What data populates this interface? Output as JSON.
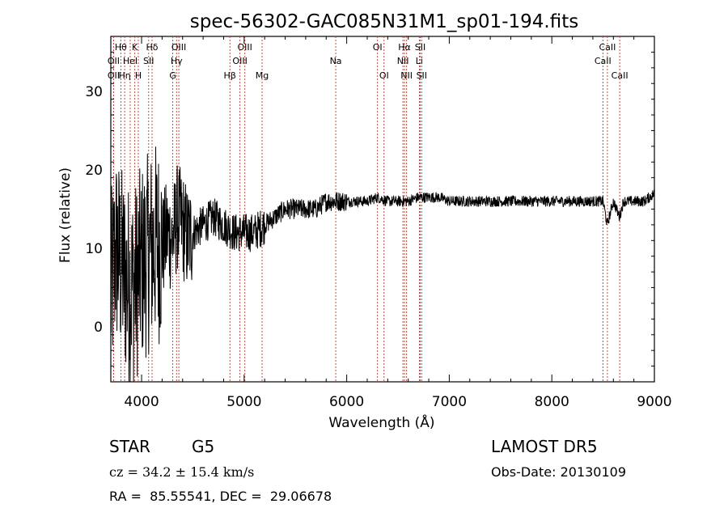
{
  "chart_data": {
    "type": "line",
    "title": "spec-56302-GAC085N31M1_sp01-194.fits",
    "xlabel": "Wavelength (Å)",
    "ylabel": "Flux (relative)",
    "xlim": [
      3700,
      9000
    ],
    "ylim": [
      -7,
      37
    ],
    "xticks": [
      4000,
      5000,
      6000,
      7000,
      8000,
      9000
    ],
    "yticks": [
      0,
      10,
      20,
      30
    ],
    "series": [
      {
        "x": [
          3700,
          3750,
          3800,
          3850,
          3900,
          3950,
          4000,
          4050,
          4100,
          4150,
          4200,
          4250,
          4300,
          4350,
          4400,
          4450,
          4500,
          4600,
          4700,
          4800,
          4900,
          5000,
          5100,
          5200,
          5300,
          5400,
          5500,
          5600,
          5700,
          5800,
          5900,
          6000,
          6100,
          6200,
          6300,
          6400,
          6500,
          6600,
          6700,
          6800,
          6900,
          7000,
          7200,
          7400,
          7600,
          7800,
          8000,
          8200,
          8400,
          8500,
          8540,
          8600,
          8660,
          8700,
          8800,
          8900,
          9000
        ],
        "y": [
          4,
          10,
          8,
          6,
          5,
          6,
          8,
          9,
          10,
          11,
          10,
          12,
          11,
          14,
          13,
          11,
          12,
          13,
          14,
          13,
          12,
          12,
          12,
          13,
          14,
          15,
          15,
          15,
          15,
          16,
          16,
          16,
          16,
          16,
          16.5,
          16,
          16,
          16,
          16.5,
          16.5,
          16.5,
          16,
          16,
          16,
          16,
          16,
          16,
          16,
          16,
          16,
          13,
          16,
          14,
          16,
          16,
          16,
          17
        ]
      }
    ],
    "lines": [
      {
        "label": "Hθ",
        "x": 3798,
        "row": 1
      },
      {
        "label": "K",
        "x": 3934,
        "row": 1
      },
      {
        "label": "Hδ",
        "x": 4102,
        "row": 1
      },
      {
        "label": "OIII",
        "x": 4363,
        "row": 1
      },
      {
        "label": "OIII",
        "x": 5007,
        "row": 1
      },
      {
        "label": "OI",
        "x": 6300,
        "row": 1
      },
      {
        "label": "Hα",
        "x": 6563,
        "row": 1
      },
      {
        "label": "SII",
        "x": 6717,
        "row": 1
      },
      {
        "label": "CaII",
        "x": 8542,
        "row": 1
      },
      {
        "label": "OII",
        "x": 3727,
        "row": 2
      },
      {
        "label": "HeI",
        "x": 3889,
        "row": 2
      },
      {
        "label": "SII",
        "x": 4069,
        "row": 2
      },
      {
        "label": "Hγ",
        "x": 4341,
        "row": 2
      },
      {
        "label": "OIII",
        "x": 4959,
        "row": 2
      },
      {
        "label": "Na",
        "x": 5893,
        "row": 2
      },
      {
        "label": "NII",
        "x": 6548,
        "row": 2
      },
      {
        "label": "Li",
        "x": 6708,
        "row": 2
      },
      {
        "label": "CaII",
        "x": 8498,
        "row": 2
      },
      {
        "label": "OII",
        "x": 3727,
        "row": 3
      },
      {
        "label": "Hη",
        "x": 3835,
        "row": 3
      },
      {
        "label": "H",
        "x": 3968,
        "row": 3
      },
      {
        "label": "G",
        "x": 4304,
        "row": 3
      },
      {
        "label": "Hβ",
        "x": 4861,
        "row": 3
      },
      {
        "label": "Mg",
        "x": 5175,
        "row": 3
      },
      {
        "label": "OI",
        "x": 6364,
        "row": 3
      },
      {
        "label": "NII",
        "x": 6584,
        "row": 3
      },
      {
        "label": "SII",
        "x": 6731,
        "row": 3
      },
      {
        "label": "CaII",
        "x": 8662,
        "row": 3
      }
    ]
  },
  "info": {
    "class": "STAR",
    "subclass": "G5",
    "survey": "LAMOST DR5",
    "cz": "cz = 34.2 ± 15.4 km/s",
    "obs_date": "Obs-Date: 20130109",
    "coords": "RA =  85.55541, DEC =  29.06678"
  }
}
